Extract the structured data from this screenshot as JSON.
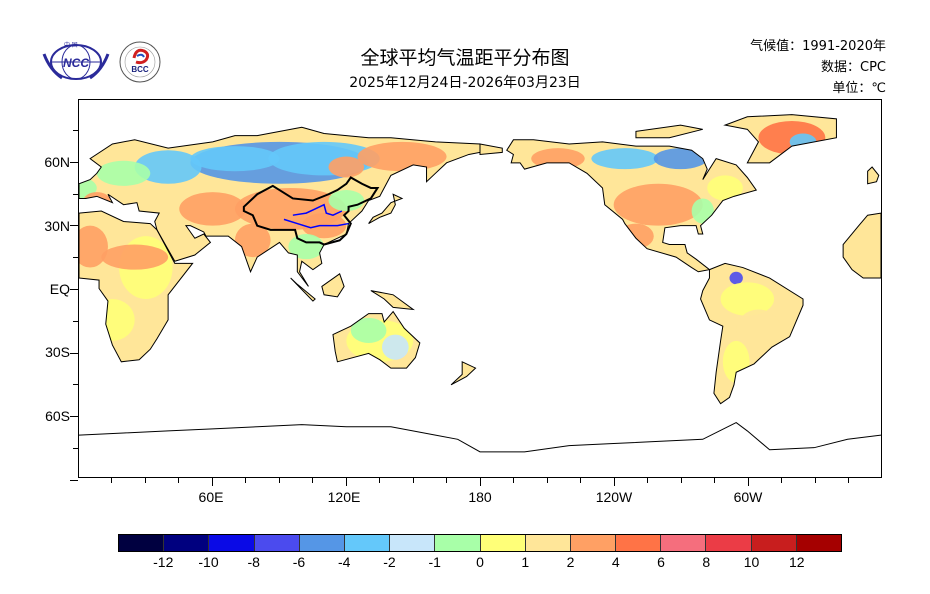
{
  "header": {
    "title": "全球平均气温距平分布图",
    "subtitle": "2025年12月24日-2026年03月23日",
    "climatology": "气候值：1991-2020年",
    "data_source": "数据：CPC",
    "unit": "单位：℃"
  },
  "logos": {
    "ncc": {
      "text": "NCC",
      "top_text": "中 国"
    },
    "bcc": {
      "text": "BCC"
    }
  },
  "map": {
    "lat_labels": [
      "60N",
      "30N",
      "EQ",
      "30S",
      "60S"
    ],
    "lon_labels": [
      "60E",
      "120E",
      "180",
      "120W",
      "60W"
    ],
    "lat_values": [
      60,
      30,
      0,
      -30,
      -60
    ],
    "lon_values": [
      60,
      120,
      180,
      240,
      300
    ]
  },
  "colorbar": {
    "colors": [
      "#000040",
      "#00007f",
      "#0a0ae6",
      "#4b4bee",
      "#5596e6",
      "#64c8fa",
      "#c8e6fa",
      "#a8ffa8",
      "#ffff78",
      "#ffe699",
      "#ffa064",
      "#ff7346",
      "#f56e7d",
      "#eb3c46",
      "#c81e1e",
      "#a50000"
    ],
    "labels": [
      "-12",
      "-10",
      "-8",
      "-6",
      "-4",
      "-2",
      "-1",
      "0",
      "1",
      "2",
      "4",
      "6",
      "8",
      "10",
      "12"
    ]
  }
}
